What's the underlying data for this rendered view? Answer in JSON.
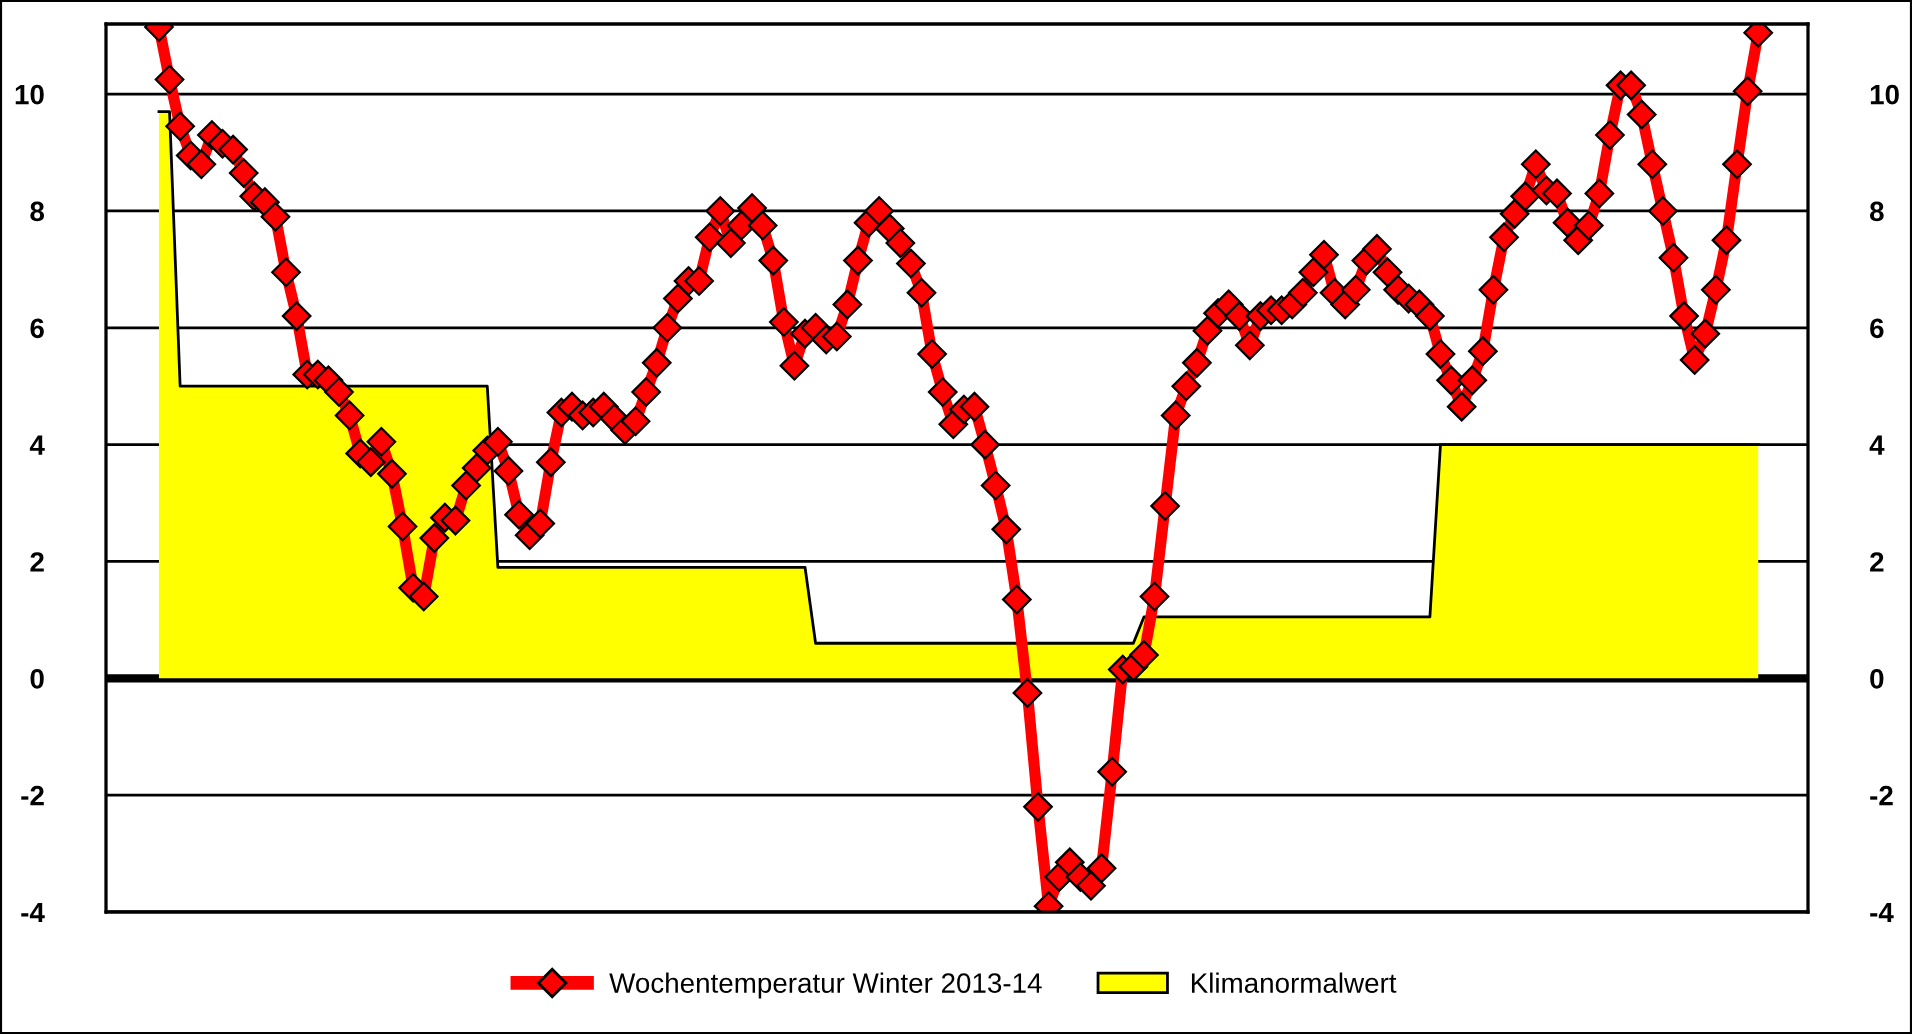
{
  "chart_data": {
    "type": "line",
    "categories": [
      null,
      null,
      null,
      null,
      null,
      null,
      null,
      null,
      null,
      null,
      null,
      null,
      null,
      null,
      null,
      null,
      null,
      null,
      null,
      null,
      null,
      null,
      null,
      null,
      null,
      null,
      null,
      null,
      null,
      null,
      null,
      null,
      null,
      null,
      null,
      null,
      null,
      null,
      null,
      null,
      null,
      null,
      null,
      null,
      null,
      null,
      null,
      null,
      null,
      null,
      null,
      null,
      null,
      null,
      null,
      null,
      null,
      null,
      null,
      null,
      null,
      null,
      null,
      null,
      null,
      null,
      null,
      null,
      null,
      null,
      null,
      null,
      null,
      null,
      null,
      null,
      null,
      null,
      null,
      null,
      null,
      null,
      null,
      null,
      null,
      null,
      null,
      null,
      null,
      null,
      null,
      null,
      null,
      null,
      null,
      null,
      null,
      null,
      null,
      null,
      null,
      null,
      null,
      null,
      null,
      null,
      null,
      null,
      null,
      null,
      null,
      null,
      null,
      null,
      null,
      null,
      null,
      null,
      null,
      null,
      null,
      null,
      null,
      null,
      null,
      null,
      null,
      null,
      null,
      null,
      null,
      null,
      null,
      null,
      null,
      null,
      null,
      null,
      null,
      null,
      null,
      null,
      null,
      null,
      null,
      null,
      null,
      null,
      null,
      null,
      null,
      null
    ],
    "series": [
      {
        "name": "Klimanormalwert",
        "type": "area",
        "color": "#ffff00",
        "values": [
          9.7,
          9.7,
          5.0,
          5.0,
          5.0,
          5.0,
          5.0,
          5.0,
          5.0,
          5.0,
          5.0,
          5.0,
          5.0,
          5.0,
          5.0,
          5.0,
          5.0,
          5.0,
          5.0,
          5.0,
          5.0,
          5.0,
          5.0,
          5.0,
          5.0,
          5.0,
          5.0,
          5.0,
          5.0,
          5.0,
          5.0,
          5.0,
          1.9,
          1.9,
          1.9,
          1.9,
          1.9,
          1.9,
          1.9,
          1.9,
          1.9,
          1.9,
          1.9,
          1.9,
          1.9,
          1.9,
          1.9,
          1.9,
          1.9,
          1.9,
          1.9,
          1.9,
          1.9,
          1.9,
          1.9,
          1.9,
          1.9,
          1.9,
          1.9,
          1.9,
          1.9,
          1.9,
          0.6,
          0.6,
          0.6,
          0.6,
          0.6,
          0.6,
          0.6,
          0.6,
          0.6,
          0.6,
          0.6,
          0.6,
          0.6,
          0.6,
          0.6,
          0.6,
          0.6,
          0.6,
          0.6,
          0.6,
          0.6,
          0.6,
          0.6,
          0.6,
          0.6,
          0.6,
          0.6,
          0.6,
          0.6,
          0.6,
          0.6,
          1.05,
          1.05,
          1.05,
          1.05,
          1.05,
          1.05,
          1.05,
          1.05,
          1.05,
          1.05,
          1.05,
          1.05,
          1.05,
          1.05,
          1.05,
          1.05,
          1.05,
          1.05,
          1.05,
          1.05,
          1.05,
          1.05,
          1.05,
          1.05,
          1.05,
          1.05,
          1.05,
          1.05,
          4.0,
          4.0,
          4.0,
          4.0,
          4.0,
          4.0,
          4.0,
          4.0,
          4.0,
          4.0,
          4.0,
          4.0,
          4.0,
          4.0,
          4.0,
          4.0,
          4.0,
          4.0,
          4.0,
          4.0,
          4.0,
          4.0,
          4.0,
          4.0,
          4.0,
          4.0,
          4.0,
          4.0,
          4.0,
          4.0,
          4.0
        ]
      },
      {
        "name": "Wochentemperatur Winter 2013-14",
        "marker": "diamond",
        "color": "#ff0000",
        "values": [
          11.15,
          10.25,
          9.45,
          8.95,
          8.8,
          9.3,
          9.15,
          9.05,
          8.65,
          8.25,
          8.15,
          7.9,
          6.95,
          6.2,
          5.2,
          5.2,
          5.1,
          4.9,
          4.5,
          3.85,
          3.7,
          4.05,
          3.5,
          2.6,
          1.55,
          1.4,
          2.4,
          2.75,
          2.7,
          3.3,
          3.6,
          3.9,
          4.05,
          3.55,
          2.8,
          2.45,
          2.65,
          3.7,
          4.55,
          4.65,
          4.5,
          4.55,
          4.65,
          4.45,
          4.25,
          4.4,
          4.9,
          5.4,
          6.0,
          6.5,
          6.8,
          6.8,
          7.55,
          8.0,
          7.45,
          7.75,
          8.05,
          7.75,
          7.15,
          6.1,
          5.35,
          5.9,
          6.0,
          5.8,
          5.85,
          6.4,
          7.15,
          7.8,
          8.0,
          7.7,
          7.45,
          7.1,
          6.6,
          5.55,
          4.9,
          4.35,
          4.6,
          4.65,
          4.0,
          3.3,
          2.55,
          1.35,
          -0.25,
          -2.2,
          -3.9,
          -3.4,
          -3.15,
          -3.4,
          -3.55,
          -3.25,
          -1.6,
          0.15,
          0.2,
          0.4,
          1.4,
          2.95,
          4.5,
          5.0,
          5.4,
          5.95,
          6.25,
          6.4,
          6.2,
          5.7,
          6.2,
          6.3,
          6.3,
          6.4,
          6.6,
          6.95,
          7.25,
          6.6,
          6.4,
          6.65,
          7.15,
          7.35,
          6.95,
          6.65,
          6.5,
          6.4,
          6.2,
          5.55,
          5.1,
          4.65,
          5.1,
          5.6,
          6.65,
          7.55,
          7.95,
          8.25,
          8.8,
          8.35,
          8.3,
          7.8,
          7.5,
          7.75,
          8.3,
          9.3,
          10.15,
          10.15,
          9.65,
          8.8,
          8.0,
          7.2,
          6.2,
          5.45,
          5.9,
          6.65,
          7.5,
          8.8,
          10.05,
          11.05
        ]
      }
    ],
    "ylim": [
      -4,
      11.2
    ],
    "yticks": [
      -4,
      -2,
      0,
      2,
      4,
      6,
      8,
      10
    ],
    "y2lim": [
      -4,
      11.2
    ],
    "y2ticks": [
      -4,
      -2,
      0,
      2,
      4,
      6,
      8,
      10
    ],
    "ref_lines": [
      {
        "axis": "y",
        "value": 0,
        "color": "#000000"
      }
    ],
    "grid": "y",
    "legend": "bottom",
    "line_style": "solid"
  }
}
